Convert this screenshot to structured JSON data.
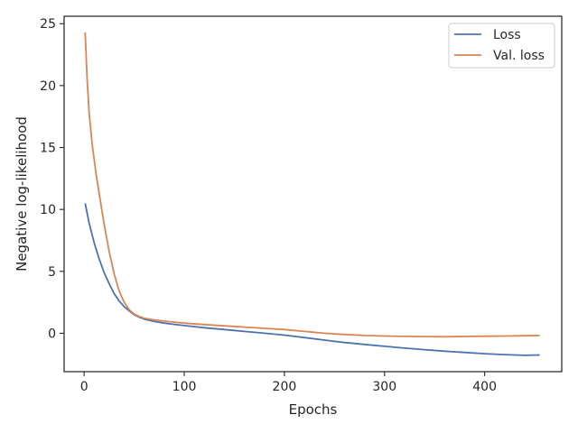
{
  "chart_data": {
    "type": "line",
    "title": "",
    "xlabel": "Epochs",
    "ylabel": "Negative log-likelihood",
    "xlim": [
      -20,
      477
    ],
    "ylim": [
      -3.1,
      25.6
    ],
    "xticks": [
      0,
      100,
      200,
      300,
      400
    ],
    "yticks": [
      0,
      5,
      10,
      15,
      20,
      25
    ],
    "grid": false,
    "legend_position": "top-right",
    "series": [
      {
        "name": "Loss",
        "color": "#4c72b0",
        "points": [
          [
            1,
            10.5
          ],
          [
            5,
            8.9
          ],
          [
            10,
            7.3
          ],
          [
            15,
            6.0
          ],
          [
            20,
            4.9
          ],
          [
            25,
            4.0
          ],
          [
            30,
            3.2
          ],
          [
            35,
            2.6
          ],
          [
            40,
            2.15
          ],
          [
            45,
            1.8
          ],
          [
            50,
            1.5
          ],
          [
            55,
            1.3
          ],
          [
            60,
            1.15
          ],
          [
            70,
            0.95
          ],
          [
            80,
            0.82
          ],
          [
            90,
            0.72
          ],
          [
            100,
            0.62
          ],
          [
            120,
            0.45
          ],
          [
            140,
            0.3
          ],
          [
            160,
            0.15
          ],
          [
            180,
            0.0
          ],
          [
            200,
            -0.15
          ],
          [
            220,
            -0.35
          ],
          [
            240,
            -0.55
          ],
          [
            260,
            -0.75
          ],
          [
            280,
            -0.9
          ],
          [
            300,
            -1.05
          ],
          [
            320,
            -1.2
          ],
          [
            340,
            -1.32
          ],
          [
            360,
            -1.45
          ],
          [
            380,
            -1.55
          ],
          [
            400,
            -1.65
          ],
          [
            420,
            -1.72
          ],
          [
            440,
            -1.78
          ],
          [
            455,
            -1.75
          ]
        ]
      },
      {
        "name": "Val. loss",
        "color": "#dd8452",
        "points": [
          [
            1,
            24.3
          ],
          [
            3,
            20.5
          ],
          [
            5,
            17.8
          ],
          [
            8,
            15.3
          ],
          [
            12,
            12.8
          ],
          [
            16,
            10.8
          ],
          [
            20,
            8.8
          ],
          [
            25,
            6.6
          ],
          [
            30,
            4.8
          ],
          [
            35,
            3.4
          ],
          [
            40,
            2.5
          ],
          [
            45,
            1.9
          ],
          [
            50,
            1.55
          ],
          [
            55,
            1.35
          ],
          [
            60,
            1.22
          ],
          [
            70,
            1.08
          ],
          [
            80,
            0.98
          ],
          [
            90,
            0.9
          ],
          [
            100,
            0.82
          ],
          [
            120,
            0.7
          ],
          [
            140,
            0.6
          ],
          [
            160,
            0.5
          ],
          [
            180,
            0.4
          ],
          [
            200,
            0.3
          ],
          [
            220,
            0.15
          ],
          [
            240,
            0.0
          ],
          [
            260,
            -0.1
          ],
          [
            280,
            -0.18
          ],
          [
            300,
            -0.22
          ],
          [
            320,
            -0.25
          ],
          [
            340,
            -0.27
          ],
          [
            360,
            -0.28
          ],
          [
            380,
            -0.26
          ],
          [
            400,
            -0.24
          ],
          [
            420,
            -0.22
          ],
          [
            440,
            -0.2
          ],
          [
            455,
            -0.18
          ]
        ]
      }
    ]
  }
}
